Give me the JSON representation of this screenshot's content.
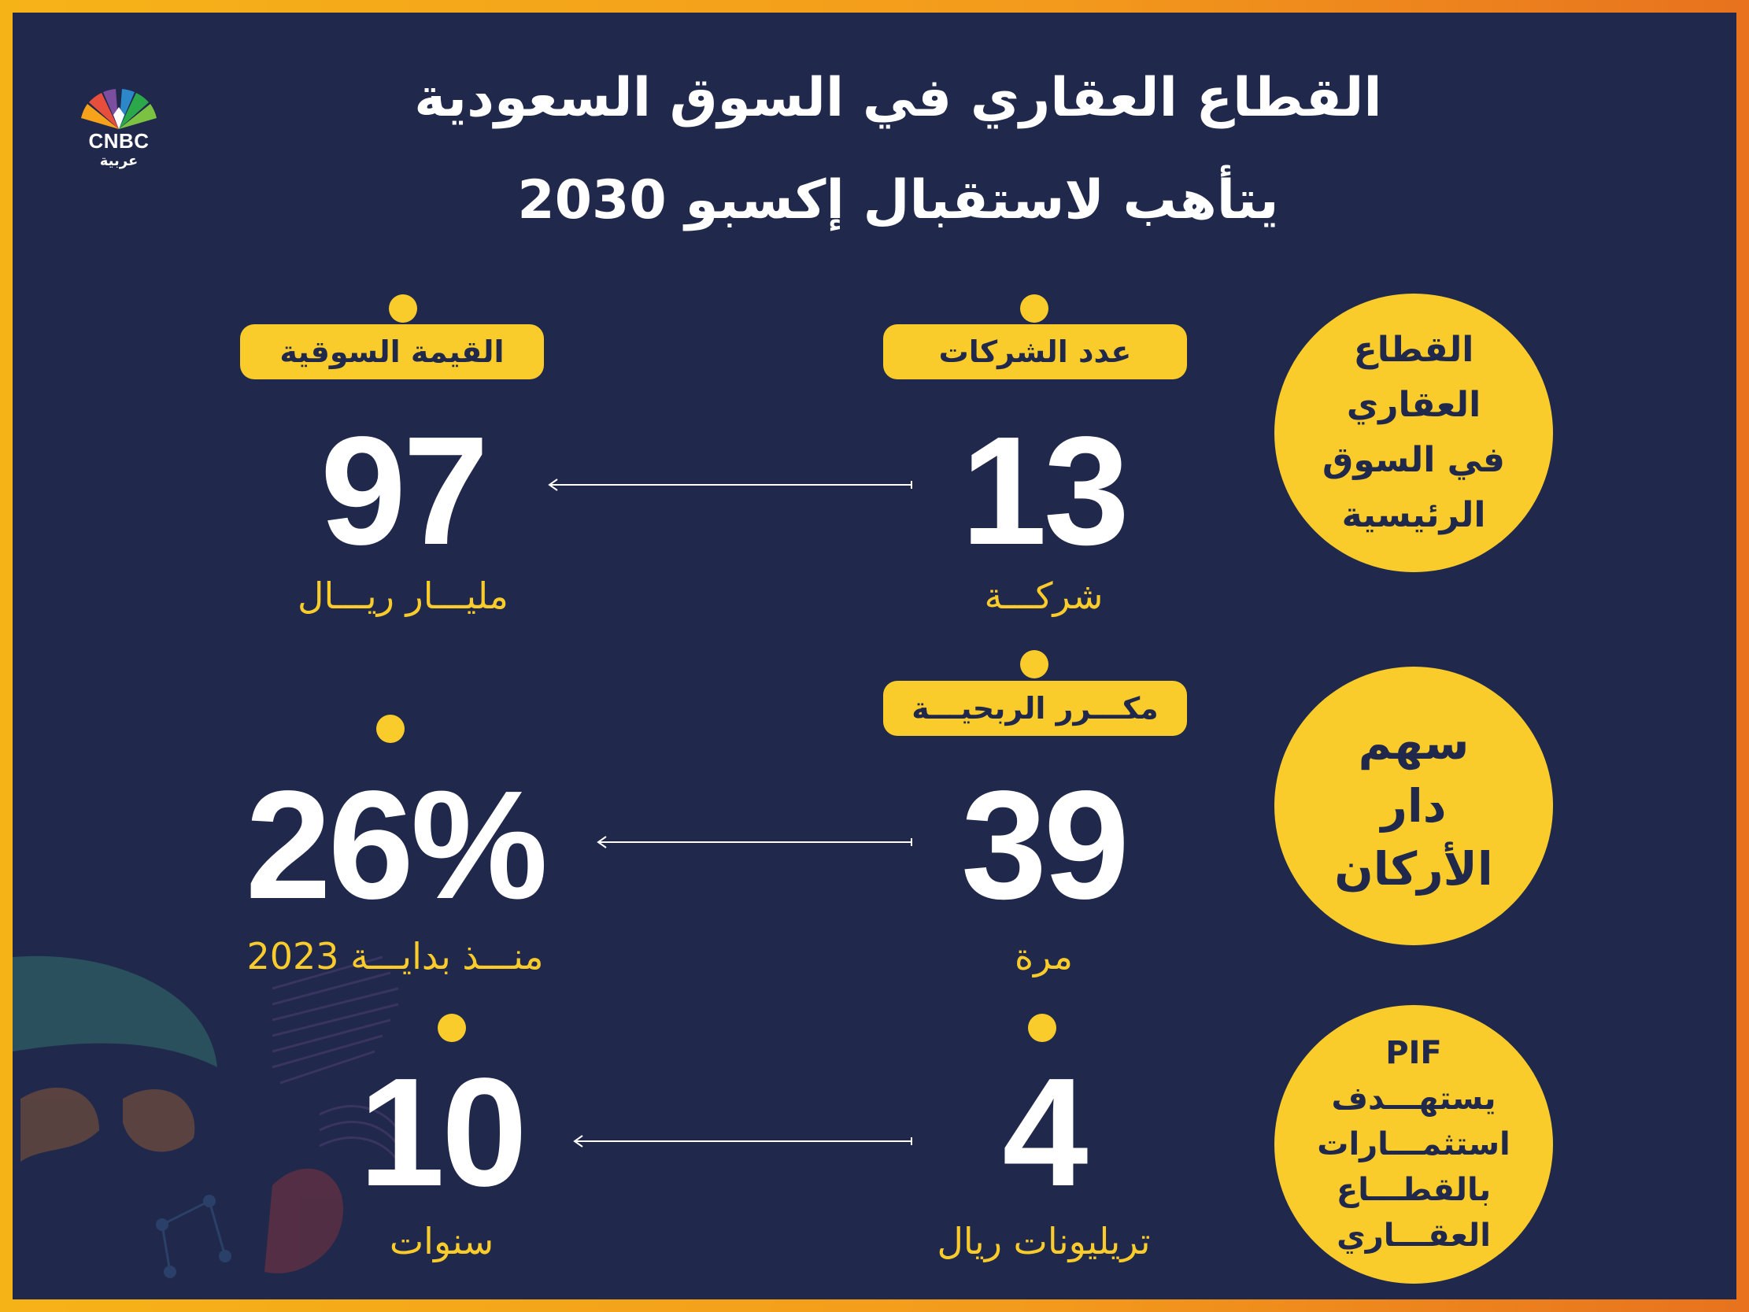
{
  "brand": {
    "logo_text": "CNBC",
    "logo_sub": "عربية"
  },
  "title": {
    "line1": "القطاع العقاري في السوق السعودية",
    "line2": "يتأهب لاستقبال إكسبو 2030"
  },
  "rows": [
    {
      "circle_lines": [
        "القطاع",
        "العقاري",
        "في السوق",
        "الرئيسية"
      ],
      "right_label": "عدد الشركات",
      "right_value": "13",
      "right_unit": "شركـــة",
      "left_label": "القيمة السوقية",
      "left_value": "97",
      "left_unit": "مليـــار ريـــال"
    },
    {
      "circle_lines": [
        "سهم",
        "دار",
        "الأركان"
      ],
      "right_label": "مكـــرر الربحيـــة",
      "right_value": "39",
      "right_unit": "مرة",
      "left_value": "26%",
      "left_unit": "منـــذ بدايـــة 2023"
    },
    {
      "circle_lines": [
        "PIF",
        "يستهـــدف",
        "استثمـــارات",
        "بالقطـــاع",
        "العقـــاري"
      ],
      "right_value": "4",
      "right_unit": "تريليونات ريال",
      "left_value": "10",
      "left_unit": "سنوات"
    }
  ],
  "colors": {
    "background": "#20284b",
    "accent": "#f9cc2c",
    "frame": "#f6b318",
    "text": "#ffffff"
  },
  "icons": {
    "logo": "peacock-logo-icon",
    "arrow": "arrow-left-icon",
    "bullet": "dot-icon"
  }
}
